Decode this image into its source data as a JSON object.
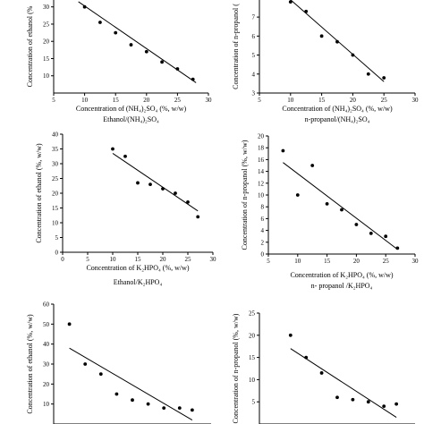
{
  "chart_data": [
    {
      "type": "scatter",
      "title": "",
      "xlabel": "Concentration of (NH₄)₂SO₄ (%, w/w)",
      "ylabel": "Concentration of ethanol (%",
      "caption": "Ethanol/(NH₄)₂SO₄",
      "xlim": [
        5,
        30
      ],
      "ylim": [
        5,
        32
      ],
      "x_ticks": [
        5,
        10,
        15,
        20,
        25,
        30
      ],
      "y_ticks": [
        10,
        15,
        20,
        25,
        30
      ],
      "grid": false,
      "trendline": {
        "x": [
          9,
          28
        ],
        "y": [
          31.5,
          8
        ]
      },
      "series": [
        {
          "x": [
            10,
            12.5,
            15,
            17.5,
            20,
            22.5,
            25,
            27.5
          ],
          "y": [
            30,
            25.5,
            22.5,
            19,
            17,
            14,
            12,
            9
          ]
        }
      ]
    },
    {
      "type": "scatter",
      "title": "",
      "xlabel": "Concentration of (NH₄)₂SO₄ (%, w/w)",
      "ylabel": "Concentration of n-propanol (",
      "caption": "n-propanol/(NH₄)₂SO₄",
      "xlim": [
        5,
        30
      ],
      "ylim": [
        3,
        7.9
      ],
      "x_ticks": [
        5,
        10,
        15,
        20,
        25,
        30
      ],
      "y_ticks": [
        3,
        4,
        5,
        6,
        7
      ],
      "grid": false,
      "trendline": {
        "x": [
          9,
          25
        ],
        "y": [
          8.2,
          3.6
        ]
      },
      "series": [
        {
          "x": [
            10,
            12.5,
            15,
            17.5,
            20,
            22.5,
            25
          ],
          "y": [
            7.8,
            7.3,
            6,
            5.7,
            5,
            4,
            3.8
          ]
        }
      ]
    },
    {
      "type": "scatter",
      "title": "",
      "xlabel": "Concentration of K₂HPO₄ (%, w/w)",
      "ylabel": "Concentration of ethanol (%, w/w)",
      "caption": "Ethanol/K₂HPO₄",
      "xlim": [
        0,
        30
      ],
      "ylim": [
        0,
        40
      ],
      "x_ticks": [
        0,
        5,
        10,
        15,
        20,
        25,
        30
      ],
      "y_ticks": [
        0,
        5,
        10,
        15,
        20,
        25,
        30,
        35,
        40
      ],
      "grid": false,
      "trendline": {
        "x": [
          10,
          27
        ],
        "y": [
          33.5,
          14
        ]
      },
      "series": [
        {
          "x": [
            10,
            12.5,
            15,
            17.5,
            20,
            22.5,
            25,
            27
          ],
          "y": [
            35,
            32.5,
            23.5,
            23,
            21.5,
            20,
            17,
            12
          ]
        }
      ]
    },
    {
      "type": "scatter",
      "title": "",
      "xlabel": "Concentration of K₂HPO₄ (%, w/w)",
      "ylabel": "Concentration of n-propanol (%, w/w)",
      "caption": "n- propanol /K₂HPO₄",
      "xlim": [
        5,
        30
      ],
      "ylim": [
        0,
        20
      ],
      "x_ticks": [
        5,
        10,
        15,
        20,
        25,
        30
      ],
      "y_ticks": [
        0,
        2,
        4,
        6,
        8,
        10,
        12,
        14,
        16,
        18,
        20
      ],
      "grid": false,
      "trendline": {
        "x": [
          7.5,
          27
        ],
        "y": [
          15.5,
          0.8
        ]
      },
      "series": [
        {
          "x": [
            7.5,
            10,
            12.5,
            15,
            17.5,
            20,
            22.5,
            25,
            27
          ],
          "y": [
            17.5,
            10,
            15,
            8.5,
            7.5,
            5,
            3.5,
            3,
            1
          ]
        }
      ]
    },
    {
      "type": "scatter",
      "title": "",
      "xlabel": "",
      "ylabel": "Concentration of ethanol (%, w/w)",
      "caption": "",
      "xlim": [
        5,
        30
      ],
      "ylim": [
        0,
        60
      ],
      "x_ticks": [],
      "y_ticks": [
        10,
        20,
        30,
        40,
        50,
        60
      ],
      "grid": false,
      "trendline": {
        "x": [
          7.5,
          27
        ],
        "y": [
          38,
          2
        ]
      },
      "series": [
        {
          "x": [
            7.5,
            10,
            12.5,
            15,
            17.5,
            20,
            22.5,
            25,
            27
          ],
          "y": [
            50,
            30,
            25,
            15,
            12,
            10,
            8,
            8,
            7
          ]
        }
      ]
    },
    {
      "type": "scatter",
      "title": "",
      "xlabel": "",
      "ylabel": "Concentration of n-propanol (%, w/w)",
      "caption": "",
      "xlim": [
        5,
        30
      ],
      "ylim": [
        0,
        25
      ],
      "x_ticks": [],
      "y_ticks": [
        5,
        10,
        15,
        20,
        25
      ],
      "grid": false,
      "trendline": {
        "x": [
          10,
          27
        ],
        "y": [
          17,
          1.5
        ]
      },
      "series": [
        {
          "x": [
            10,
            12.5,
            15,
            17.5,
            20,
            22.5,
            25,
            27
          ],
          "y": [
            20,
            15,
            11.5,
            6,
            5.5,
            5,
            4,
            4.5
          ]
        }
      ]
    }
  ]
}
